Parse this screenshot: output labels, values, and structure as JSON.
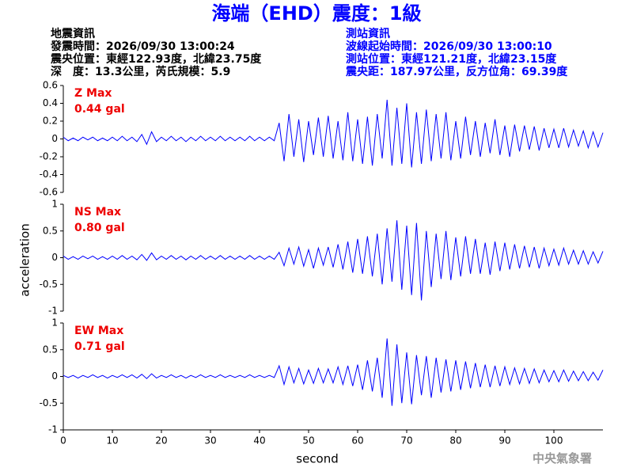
{
  "header": {
    "title": "海端（EHD）震度：1級",
    "event": {
      "heading": "地震資訊",
      "lines": [
        "發震時間：2026/09/30 13:00:24",
        "震央位置：東經122.93度，北緯23.75度",
        "深　度：13.3公里，芮氏規模：5.9"
      ]
    },
    "station": {
      "heading": "測站資訊",
      "lines": [
        "波線起始時間：2026/09/30 13:00:10",
        "測站位置：東經121.21度，北緯23.15度",
        "震央距：187.97公里，反方位角：69.39度"
      ]
    }
  },
  "footer": "中央氣象署",
  "chart_data": [
    {
      "type": "line",
      "annotations": [
        "Z Max",
        "0.44 gal"
      ],
      "color": "#0000ff",
      "xlim": [
        0,
        110
      ],
      "ylim": [
        -0.6,
        0.6
      ],
      "yticks": [
        -0.6,
        -0.4,
        -0.2,
        0,
        0.2,
        0.4,
        0.6
      ],
      "x": [
        0,
        1,
        2,
        3,
        4,
        5,
        6,
        7,
        8,
        9,
        10,
        11,
        12,
        13,
        14,
        15,
        16,
        17,
        18,
        19,
        20,
        21,
        22,
        23,
        24,
        25,
        26,
        27,
        28,
        29,
        30,
        31,
        32,
        33,
        34,
        35,
        36,
        37,
        38,
        39,
        40,
        41,
        42,
        43,
        44,
        45,
        46,
        47,
        48,
        49,
        50,
        51,
        52,
        53,
        54,
        55,
        56,
        57,
        58,
        59,
        60,
        61,
        62,
        63,
        64,
        65,
        66,
        67,
        68,
        69,
        70,
        71,
        72,
        73,
        74,
        75,
        76,
        77,
        78,
        79,
        80,
        81,
        82,
        83,
        84,
        85,
        86,
        87,
        88,
        89,
        90,
        91,
        92,
        93,
        94,
        95,
        96,
        97,
        98,
        99,
        100,
        101,
        102,
        103,
        104,
        105,
        106,
        107,
        108,
        109,
        110
      ],
      "values": [
        0.02,
        -0.02,
        0.01,
        -0.02,
        0.02,
        -0.01,
        0.02,
        -0.02,
        0.01,
        -0.02,
        0.02,
        -0.02,
        0.03,
        -0.02,
        0.02,
        -0.03,
        0.05,
        -0.06,
        0.08,
        -0.03,
        0.02,
        -0.02,
        0.03,
        -0.02,
        0.02,
        -0.03,
        0.02,
        -0.02,
        0.03,
        -0.02,
        0.02,
        -0.02,
        0.03,
        -0.02,
        0.02,
        -0.02,
        0.02,
        -0.02,
        0.03,
        -0.02,
        0.02,
        -0.02,
        0.02,
        -0.02,
        0.18,
        -0.25,
        0.28,
        -0.2,
        0.22,
        -0.26,
        0.2,
        -0.18,
        0.24,
        -0.2,
        0.26,
        -0.22,
        0.2,
        -0.24,
        0.3,
        -0.25,
        0.22,
        -0.28,
        0.25,
        -0.3,
        0.28,
        -0.22,
        0.44,
        -0.3,
        0.35,
        -0.28,
        0.4,
        -0.32,
        0.3,
        -0.28,
        0.33,
        -0.25,
        0.28,
        -0.22,
        0.3,
        -0.24,
        0.2,
        -0.22,
        0.25,
        -0.18,
        0.2,
        -0.2,
        0.18,
        -0.16,
        0.22,
        -0.18,
        0.15,
        -0.2,
        0.16,
        -0.14,
        0.15,
        -0.12,
        0.14,
        -0.13,
        0.12,
        -0.1,
        0.11,
        -0.1,
        0.12,
        -0.09,
        0.1,
        -0.08,
        0.09,
        -0.1,
        0.08,
        -0.09,
        0.07
      ]
    },
    {
      "type": "line",
      "annotations": [
        "NS Max",
        "0.80 gal"
      ],
      "ylabel": "acceleration",
      "color": "#0000ff",
      "xlim": [
        0,
        110
      ],
      "ylim": [
        -1,
        1
      ],
      "yticks": [
        -1,
        -0.5,
        0,
        0.5,
        1
      ],
      "x": [
        0,
        1,
        2,
        3,
        4,
        5,
        6,
        7,
        8,
        9,
        10,
        11,
        12,
        13,
        14,
        15,
        16,
        17,
        18,
        19,
        20,
        21,
        22,
        23,
        24,
        25,
        26,
        27,
        28,
        29,
        30,
        31,
        32,
        33,
        34,
        35,
        36,
        37,
        38,
        39,
        40,
        41,
        42,
        43,
        44,
        45,
        46,
        47,
        48,
        49,
        50,
        51,
        52,
        53,
        54,
        55,
        56,
        57,
        58,
        59,
        60,
        61,
        62,
        63,
        64,
        65,
        66,
        67,
        68,
        69,
        70,
        71,
        72,
        73,
        74,
        75,
        76,
        77,
        78,
        79,
        80,
        81,
        82,
        83,
        84,
        85,
        86,
        87,
        88,
        89,
        90,
        91,
        92,
        93,
        94,
        95,
        96,
        97,
        98,
        99,
        100,
        101,
        102,
        103,
        104,
        105,
        106,
        107,
        108,
        109,
        110
      ],
      "values": [
        0.03,
        -0.03,
        0.02,
        -0.03,
        0.03,
        -0.02,
        0.03,
        -0.03,
        0.02,
        -0.03,
        0.03,
        -0.03,
        0.04,
        -0.03,
        0.03,
        -0.04,
        0.06,
        -0.05,
        0.09,
        -0.04,
        0.03,
        -0.03,
        0.04,
        -0.03,
        0.03,
        -0.04,
        0.03,
        -0.03,
        0.04,
        -0.03,
        0.03,
        -0.03,
        0.04,
        -0.03,
        0.03,
        -0.03,
        0.03,
        -0.03,
        0.04,
        -0.03,
        0.03,
        -0.03,
        0.03,
        -0.03,
        0.1,
        -0.15,
        0.18,
        -0.12,
        0.2,
        -0.16,
        0.15,
        -0.2,
        0.18,
        -0.14,
        0.2,
        -0.18,
        0.25,
        -0.22,
        0.3,
        -0.28,
        0.35,
        -0.3,
        0.4,
        -0.35,
        0.45,
        -0.5,
        0.55,
        -0.45,
        0.7,
        -0.6,
        0.6,
        -0.7,
        0.65,
        -0.8,
        0.5,
        -0.55,
        0.45,
        -0.4,
        0.5,
        -0.42,
        0.38,
        -0.35,
        0.4,
        -0.3,
        0.35,
        -0.3,
        0.28,
        -0.32,
        0.3,
        -0.25,
        0.28,
        -0.22,
        0.25,
        -0.2,
        0.22,
        -0.18,
        0.2,
        -0.2,
        0.18,
        -0.15,
        0.16,
        -0.14,
        0.18,
        -0.12,
        0.14,
        -0.12,
        0.13,
        -0.12,
        0.11,
        -0.1,
        0.12
      ]
    },
    {
      "type": "line",
      "annotations": [
        "EW Max",
        "0.71 gal"
      ],
      "xlabel": "second",
      "color": "#0000ff",
      "xlim": [
        0,
        110
      ],
      "ylim": [
        -1,
        1
      ],
      "yticks": [
        -1,
        -0.5,
        0,
        0.5,
        1
      ],
      "xticks": [
        0,
        10,
        20,
        30,
        40,
        50,
        60,
        70,
        80,
        90,
        100
      ],
      "x": [
        0,
        1,
        2,
        3,
        4,
        5,
        6,
        7,
        8,
        9,
        10,
        11,
        12,
        13,
        14,
        15,
        16,
        17,
        18,
        19,
        20,
        21,
        22,
        23,
        24,
        25,
        26,
        27,
        28,
        29,
        30,
        31,
        32,
        33,
        34,
        35,
        36,
        37,
        38,
        39,
        40,
        41,
        42,
        43,
        44,
        45,
        46,
        47,
        48,
        49,
        50,
        51,
        52,
        53,
        54,
        55,
        56,
        57,
        58,
        59,
        60,
        61,
        62,
        63,
        64,
        65,
        66,
        67,
        68,
        69,
        70,
        71,
        72,
        73,
        74,
        75,
        76,
        77,
        78,
        79,
        80,
        81,
        82,
        83,
        84,
        85,
        86,
        87,
        88,
        89,
        90,
        91,
        92,
        93,
        94,
        95,
        96,
        97,
        98,
        99,
        100,
        101,
        102,
        103,
        104,
        105,
        106,
        107,
        108,
        109,
        110
      ],
      "values": [
        0.02,
        -0.02,
        0.02,
        -0.03,
        0.02,
        -0.02,
        0.03,
        -0.02,
        0.02,
        -0.03,
        0.02,
        -0.02,
        0.03,
        -0.02,
        0.03,
        -0.03,
        0.04,
        -0.04,
        0.05,
        -0.03,
        0.02,
        -0.02,
        0.03,
        -0.02,
        0.02,
        -0.03,
        0.02,
        -0.02,
        0.03,
        -0.02,
        0.02,
        -0.02,
        0.03,
        -0.02,
        0.02,
        -0.02,
        0.02,
        -0.02,
        0.03,
        -0.02,
        0.02,
        -0.02,
        0.02,
        -0.02,
        0.2,
        -0.15,
        0.18,
        -0.12,
        0.15,
        -0.14,
        0.12,
        -0.13,
        0.15,
        -0.12,
        0.14,
        -0.12,
        0.18,
        -0.15,
        0.2,
        -0.18,
        0.22,
        -0.25,
        0.3,
        -0.28,
        0.35,
        -0.4,
        0.71,
        -0.55,
        0.6,
        -0.5,
        0.45,
        -0.52,
        0.4,
        -0.35,
        0.38,
        -0.4,
        0.35,
        -0.3,
        0.32,
        -0.28,
        0.3,
        -0.25,
        0.28,
        -0.22,
        0.25,
        -0.2,
        0.22,
        -0.2,
        0.2,
        -0.18,
        0.18,
        -0.15,
        0.16,
        -0.14,
        0.15,
        -0.13,
        0.14,
        -0.12,
        0.12,
        -0.1,
        0.11,
        -0.1,
        0.12,
        -0.09,
        0.1,
        -0.08,
        0.09,
        -0.08,
        0.08,
        -0.07,
        0.12
      ]
    }
  ]
}
